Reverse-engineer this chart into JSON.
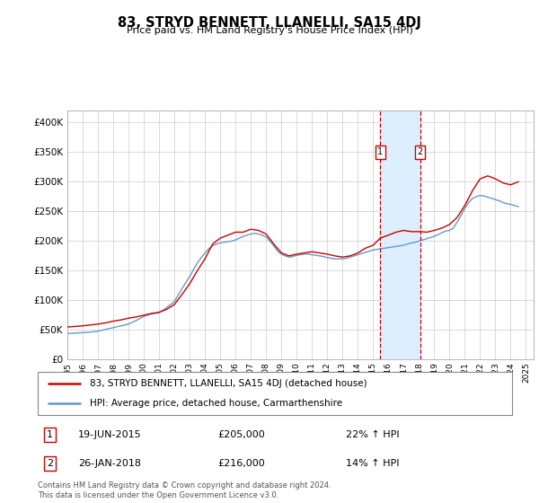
{
  "title": "83, STRYD BENNETT, LLANELLI, SA15 4DJ",
  "subtitle": "Price paid vs. HM Land Registry's House Price Index (HPI)",
  "ylabel_ticks": [
    "£0",
    "£50K",
    "£100K",
    "£150K",
    "£200K",
    "£250K",
    "£300K",
    "£350K",
    "£400K"
  ],
  "ytick_values": [
    0,
    50000,
    100000,
    150000,
    200000,
    250000,
    300000,
    350000,
    400000
  ],
  "ylim": [
    0,
    420000
  ],
  "xlim_start": 1995,
  "xlim_end": 2025.5,
  "xticks": [
    1995,
    1996,
    1997,
    1998,
    1999,
    2000,
    2001,
    2002,
    2003,
    2004,
    2005,
    2006,
    2007,
    2008,
    2009,
    2010,
    2011,
    2012,
    2013,
    2014,
    2015,
    2016,
    2017,
    2018,
    2019,
    2020,
    2021,
    2022,
    2023,
    2024,
    2025
  ],
  "transaction1_x": 2015.47,
  "transaction1_y": 205000,
  "transaction1_label": "19-JUN-2015",
  "transaction1_price": "£205,000",
  "transaction1_hpi": "22% ↑ HPI",
  "transaction2_x": 2018.07,
  "transaction2_y": 216000,
  "transaction2_label": "26-JAN-2018",
  "transaction2_price": "£216,000",
  "transaction2_hpi": "14% ↑ HPI",
  "legend_line1": "83, STRYD BENNETT, LLANELLI, SA15 4DJ (detached house)",
  "legend_line2": "HPI: Average price, detached house, Carmarthenshire",
  "line_color_red": "#cc0000",
  "line_color_blue": "#6699cc",
  "shade_color": "#ddeeff",
  "footnote": "Contains HM Land Registry data © Crown copyright and database right 2024.\nThis data is licensed under the Open Government Licence v3.0.",
  "hpi_data_x": [
    1995.0,
    1995.25,
    1995.5,
    1995.75,
    1996.0,
    1996.25,
    1996.5,
    1996.75,
    1997.0,
    1997.25,
    1997.5,
    1997.75,
    1998.0,
    1998.25,
    1998.5,
    1998.75,
    1999.0,
    1999.25,
    1999.5,
    1999.75,
    2000.0,
    2000.25,
    2000.5,
    2000.75,
    2001.0,
    2001.25,
    2001.5,
    2001.75,
    2002.0,
    2002.25,
    2002.5,
    2002.75,
    2003.0,
    2003.25,
    2003.5,
    2003.75,
    2004.0,
    2004.25,
    2004.5,
    2004.75,
    2005.0,
    2005.25,
    2005.5,
    2005.75,
    2006.0,
    2006.25,
    2006.5,
    2006.75,
    2007.0,
    2007.25,
    2007.5,
    2007.75,
    2008.0,
    2008.25,
    2008.5,
    2008.75,
    2009.0,
    2009.25,
    2009.5,
    2009.75,
    2010.0,
    2010.25,
    2010.5,
    2010.75,
    2011.0,
    2011.25,
    2011.5,
    2011.75,
    2012.0,
    2012.25,
    2012.5,
    2012.75,
    2013.0,
    2013.25,
    2013.5,
    2013.75,
    2014.0,
    2014.25,
    2014.5,
    2014.75,
    2015.0,
    2015.25,
    2015.5,
    2015.75,
    2016.0,
    2016.25,
    2016.5,
    2016.75,
    2017.0,
    2017.25,
    2017.5,
    2017.75,
    2018.0,
    2018.25,
    2018.5,
    2018.75,
    2019.0,
    2019.25,
    2019.5,
    2019.75,
    2020.0,
    2020.25,
    2020.5,
    2020.75,
    2021.0,
    2021.25,
    2021.5,
    2021.75,
    2022.0,
    2022.25,
    2022.5,
    2022.75,
    2023.0,
    2023.25,
    2023.5,
    2023.75,
    2024.0,
    2024.25,
    2024.5
  ],
  "hpi_data_y": [
    44000,
    44500,
    44800,
    45200,
    45600,
    46000,
    46500,
    47200,
    48000,
    49500,
    51000,
    52500,
    54000,
    55500,
    57000,
    58500,
    60000,
    63000,
    66000,
    69500,
    73000,
    75000,
    77000,
    78000,
    79000,
    83000,
    88000,
    93000,
    98000,
    109000,
    120000,
    130000,
    140000,
    152000,
    163000,
    172000,
    180000,
    187000,
    192000,
    195000,
    197000,
    198000,
    199000,
    200000,
    202000,
    205000,
    208000,
    210000,
    212000,
    213000,
    212000,
    210000,
    207000,
    200000,
    192000,
    183000,
    178000,
    175000,
    173000,
    174000,
    176000,
    177000,
    178000,
    178000,
    177000,
    176000,
    175000,
    174000,
    172000,
    171000,
    170000,
    170000,
    170000,
    171000,
    173000,
    175000,
    177000,
    179000,
    181000,
    183000,
    185000,
    186000,
    187000,
    188000,
    189000,
    190000,
    191000,
    192000,
    193000,
    195000,
    197000,
    198000,
    200000,
    202000,
    204000,
    206000,
    208000,
    211000,
    214000,
    217000,
    218000,
    222000,
    232000,
    243000,
    255000,
    265000,
    272000,
    275000,
    277000,
    276000,
    274000,
    272000,
    270000,
    268000,
    265000,
    263000,
    262000,
    260000,
    258000
  ],
  "price_data_x": [
    1995.0,
    1995.5,
    1996.0,
    1996.5,
    1997.0,
    1997.5,
    1998.0,
    1998.5,
    1999.0,
    1999.5,
    2000.0,
    2000.5,
    2001.0,
    2001.5,
    2002.0,
    2002.5,
    2003.0,
    2003.5,
    2004.0,
    2004.5,
    2005.0,
    2005.5,
    2006.0,
    2006.5,
    2007.0,
    2007.5,
    2008.0,
    2008.5,
    2009.0,
    2009.5,
    2010.0,
    2010.5,
    2011.0,
    2011.5,
    2012.0,
    2012.5,
    2013.0,
    2013.5,
    2014.0,
    2014.5,
    2015.0,
    2015.47,
    2016.0,
    2016.5,
    2017.0,
    2017.5,
    2018.07,
    2018.5,
    2019.0,
    2019.5,
    2020.0,
    2020.5,
    2021.0,
    2021.5,
    2022.0,
    2022.5,
    2023.0,
    2023.5,
    2024.0,
    2024.5
  ],
  "price_data_y": [
    55000,
    56000,
    57000,
    58500,
    60000,
    62000,
    65000,
    67000,
    70000,
    72000,
    75000,
    78000,
    80000,
    85000,
    93000,
    110000,
    128000,
    150000,
    170000,
    195000,
    205000,
    210000,
    215000,
    215000,
    220000,
    218000,
    212000,
    195000,
    180000,
    175000,
    178000,
    180000,
    182000,
    180000,
    178000,
    175000,
    173000,
    175000,
    180000,
    188000,
    193000,
    205000,
    210000,
    215000,
    218000,
    216000,
    216000,
    215000,
    218000,
    222000,
    228000,
    240000,
    260000,
    285000,
    305000,
    310000,
    305000,
    298000,
    295000,
    300000
  ]
}
